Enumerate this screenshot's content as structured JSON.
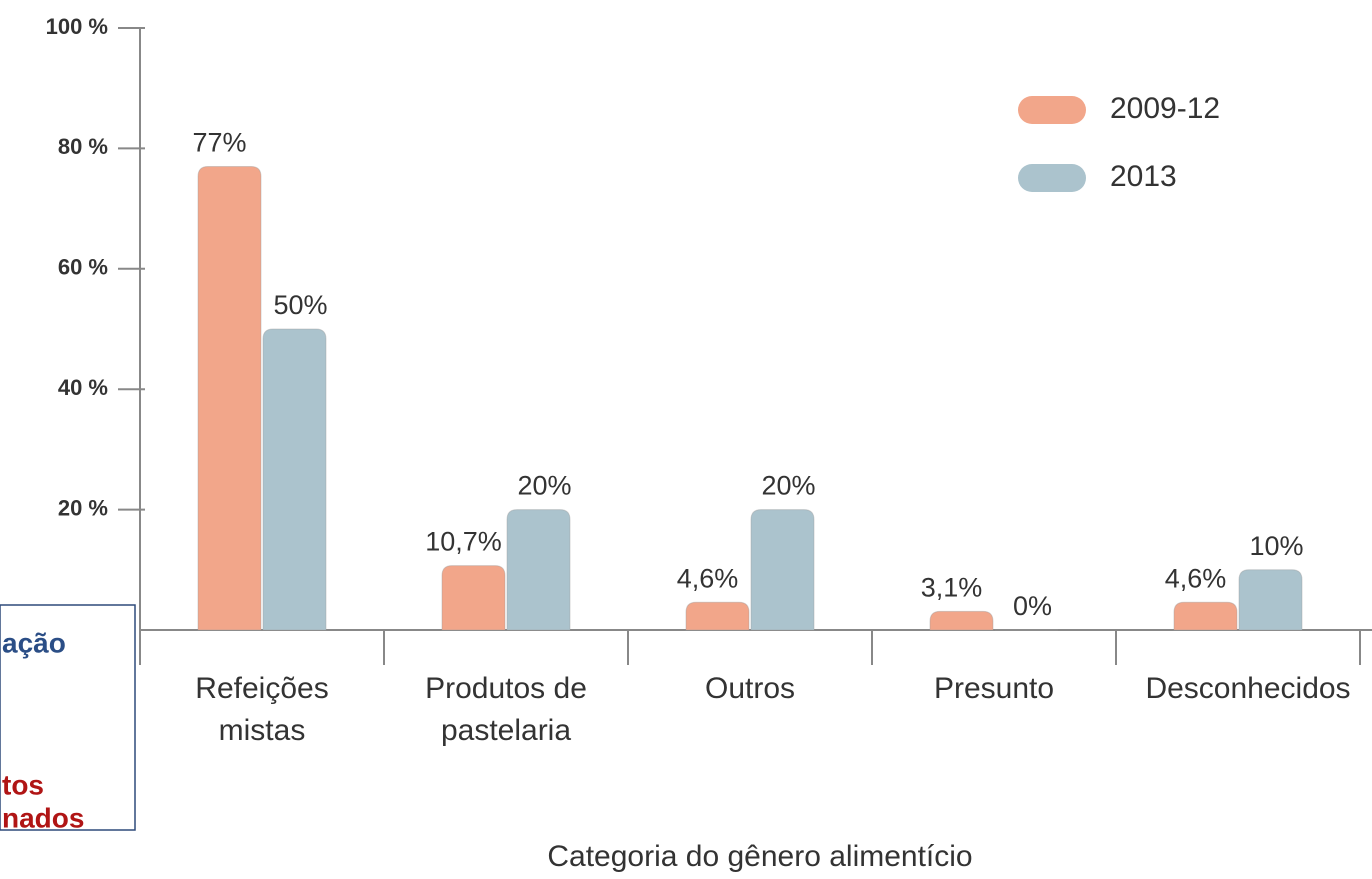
{
  "chart_data": {
    "type": "bar",
    "xlabel": "Categoria do gênero alimentício",
    "categories": [
      [
        "Refeições",
        "mistas"
      ],
      [
        "Produtos de",
        "pastelaria"
      ],
      [
        "Outros"
      ],
      [
        "Presunto"
      ],
      [
        "Desconhecidos"
      ]
    ],
    "series": [
      {
        "name": "2009-12",
        "color": "#f2a68a",
        "values": [
          77,
          10.7,
          4.6,
          3.1,
          4.6
        ],
        "value_labels": [
          "77%",
          "10,7%",
          "4,6%",
          "3,1%",
          "4,6%"
        ]
      },
      {
        "name": "2013",
        "color": "#abc3cd",
        "values": [
          50,
          20,
          20,
          0,
          10
        ],
        "value_labels": [
          "50%",
          "20%",
          "20%",
          "0%",
          "10%"
        ]
      }
    ],
    "ylim": [
      0,
      100
    ],
    "yticks": [
      {
        "value": 20,
        "label": "20 %"
      },
      {
        "value": 40,
        "label": "40 %"
      },
      {
        "value": 60,
        "label": "60 %"
      },
      {
        "value": 80,
        "label": "80 %"
      },
      {
        "value": 100,
        "label": "100 %"
      }
    ],
    "legend": "upper right",
    "annotation_box": [
      "ação",
      "tos",
      "nados"
    ]
  }
}
